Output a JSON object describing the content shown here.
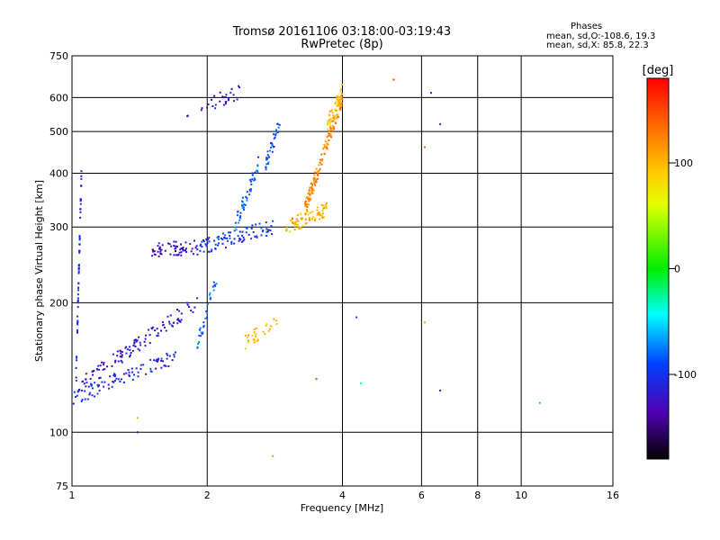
{
  "chart_data": {
    "type": "scatter",
    "title": "Tromsø 20161106 03:18:00-03:19:43",
    "subtitle": "RwPretec (8p)",
    "xlabel": "Frequency [MHz]",
    "ylabel": "Stationary phase Virtual Height [km]",
    "x_scale": "log",
    "y_scale": "log",
    "xlim": [
      1,
      16
    ],
    "ylim": [
      75,
      750
    ],
    "x_ticks": [
      1,
      2,
      4,
      6,
      8,
      10,
      16
    ],
    "y_ticks": [
      75,
      100,
      200,
      300,
      400,
      500,
      600,
      750
    ],
    "grid": true,
    "stats": {
      "heading": "Phases",
      "o_line": "mean, sd,O:-108.6, 19.3",
      "x_line": "mean, sd,X:  85.8, 22.3"
    },
    "colorbar": {
      "label": "[deg]",
      "ticks": [
        100,
        0,
        -100
      ],
      "range": [
        -180,
        180
      ]
    },
    "traces": [
      {
        "x_range": [
          1.0,
          1.7
        ],
        "h_start": 120,
        "h_end": 150,
        "phase": -105,
        "n": 90
      },
      {
        "x_range": [
          1.0,
          1.9
        ],
        "h_start": 125,
        "h_end": 200,
        "phase": -120,
        "n": 120
      },
      {
        "x_range": [
          1.02,
          1.05
        ],
        "h_start": 130,
        "h_end": 400,
        "phase": -110,
        "n": 60
      },
      {
        "x_range": [
          1.5,
          1.9
        ],
        "h_start": 265,
        "h_end": 270,
        "phase": -125,
        "n": 60
      },
      {
        "x_range": [
          1.9,
          2.8
        ],
        "h_start": 268,
        "h_end": 300,
        "phase": -100,
        "n": 90
      },
      {
        "x_range": [
          2.3,
          2.6
        ],
        "h_start": 300,
        "h_end": 420,
        "phase": -85,
        "n": 50
      },
      {
        "x_range": [
          2.7,
          2.9
        ],
        "h_start": 420,
        "h_end": 520,
        "phase": -90,
        "n": 35
      },
      {
        "x_range": [
          3.0,
          3.7
        ],
        "h_start": 300,
        "h_end": 330,
        "phase": 100,
        "n": 80
      },
      {
        "x_range": [
          3.3,
          4.0
        ],
        "h_start": 330,
        "h_end": 600,
        "phase": 120,
        "n": 160
      },
      {
        "x_range": [
          3.7,
          4.0
        ],
        "h_start": 520,
        "h_end": 620,
        "phase": 95,
        "n": 40
      },
      {
        "x_range": [
          2.4,
          2.9
        ],
        "h_start": 160,
        "h_end": 185,
        "phase": 105,
        "n": 30
      },
      {
        "x_range": [
          1.9,
          2.1
        ],
        "h_start": 160,
        "h_end": 230,
        "phase": -80,
        "n": 30
      },
      {
        "x_range": [
          1.8,
          2.4
        ],
        "h_start": 560,
        "h_end": 620,
        "phase": -120,
        "n": 30
      }
    ],
    "outliers": [
      {
        "x": 5.2,
        "y": 660,
        "phase": 150
      },
      {
        "x": 6.3,
        "y": 615,
        "phase": -110
      },
      {
        "x": 6.6,
        "y": 520,
        "phase": -90
      },
      {
        "x": 6.1,
        "y": 460,
        "phase": 140
      },
      {
        "x": 6.6,
        "y": 125,
        "phase": -120
      },
      {
        "x": 4.3,
        "y": 185,
        "phase": -90
      },
      {
        "x": 4.4,
        "y": 130,
        "phase": -30
      },
      {
        "x": 3.5,
        "y": 133,
        "phase": 150
      },
      {
        "x": 6.1,
        "y": 180,
        "phase": 110
      },
      {
        "x": 11.0,
        "y": 117,
        "phase": -60
      },
      {
        "x": 1.4,
        "y": 108,
        "phase": 105
      },
      {
        "x": 1.4,
        "y": 100,
        "phase": -140
      },
      {
        "x": 2.8,
        "y": 88,
        "phase": 115
      }
    ]
  }
}
